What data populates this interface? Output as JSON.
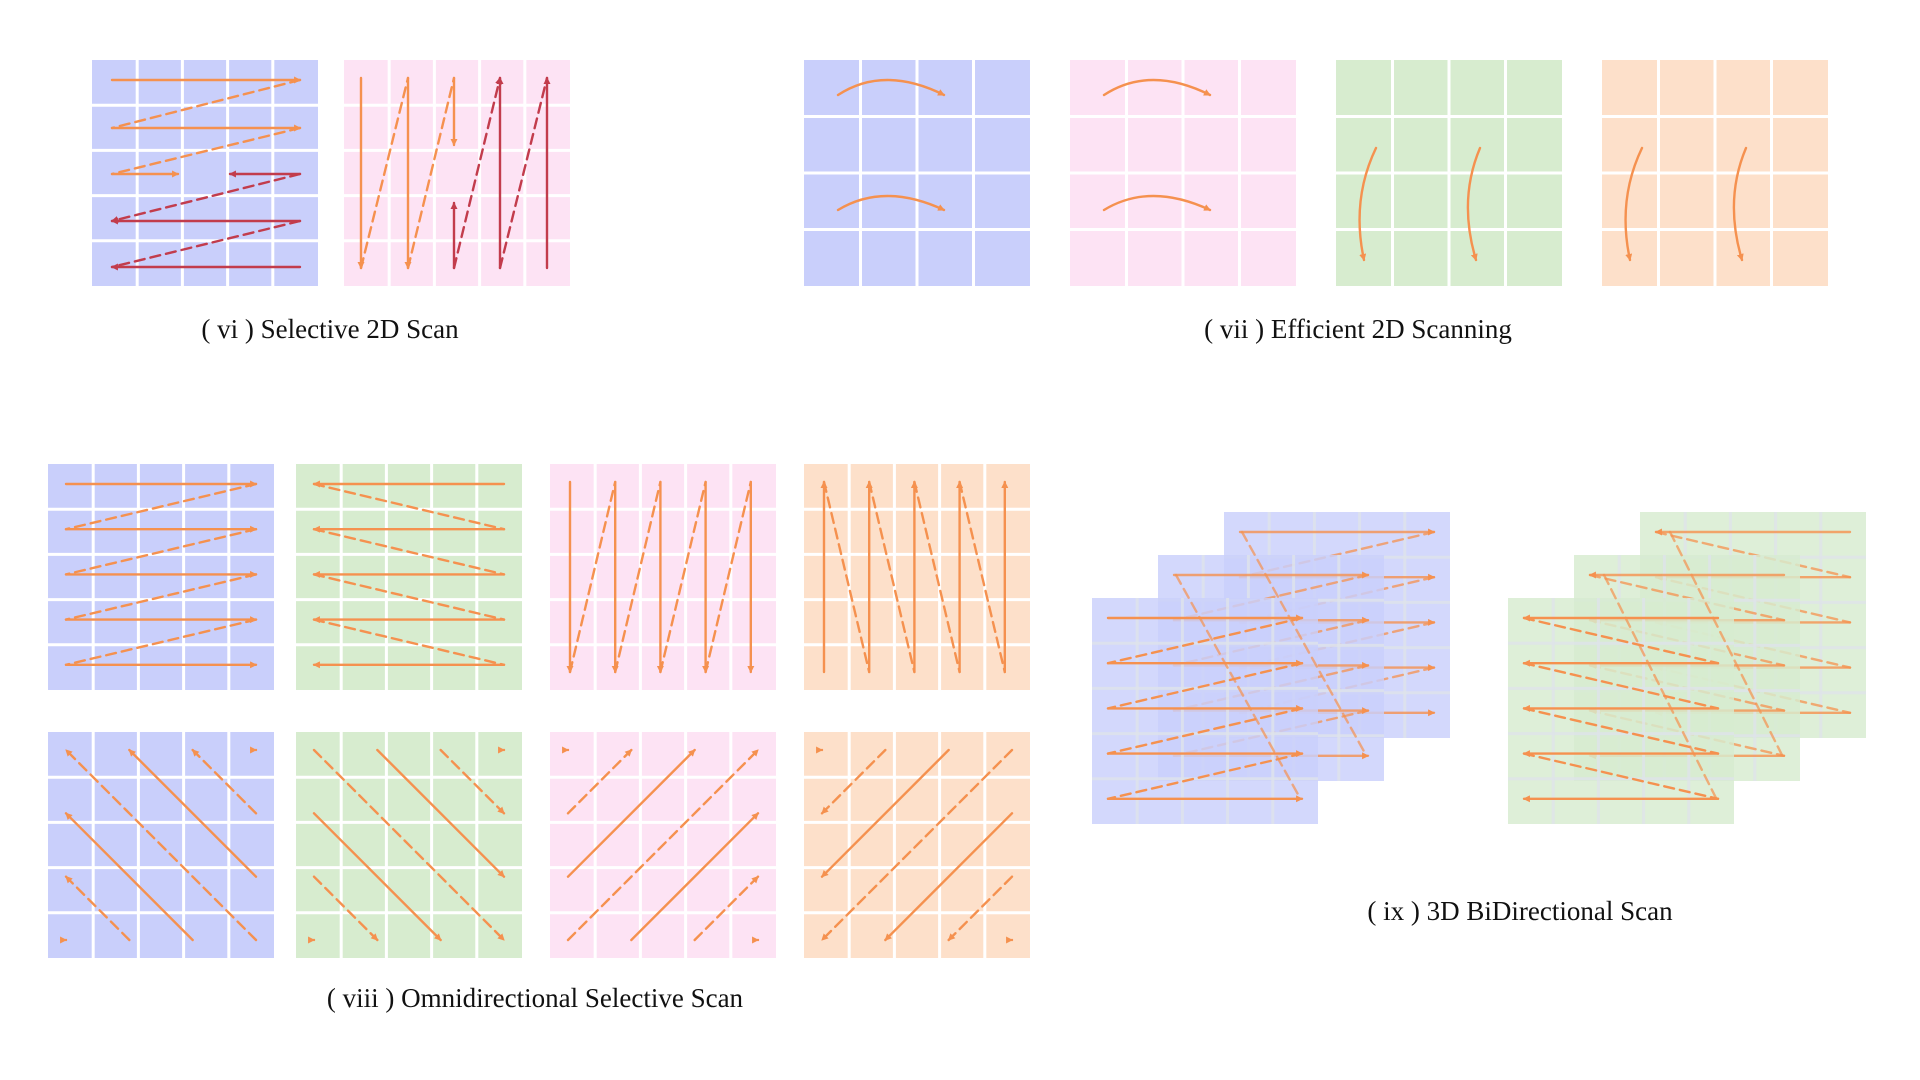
{
  "colors": {
    "blue": "#c9cffb",
    "pink": "#fde3f4",
    "green": "#d7eccf",
    "peach": "#fde0ca",
    "orange": "#f5914f",
    "red": "#c23c4c",
    "grid_line": "#ffffff"
  },
  "captions": {
    "vi": "( vi ) Selective 2D Scan",
    "vii": "( vii ) Efficient 2D Scanning",
    "viii": "( viii ) Omnidirectional Selective Scan",
    "ix": "( ix ) 3D BiDirectional Scan"
  },
  "grid": {
    "rows": 5,
    "cols": 5
  },
  "panels": {
    "vi_horizontal": {
      "fill": "blue",
      "pattern": "horizontal-snake-two-tone"
    },
    "vi_vertical": {
      "fill": "pink",
      "pattern": "vertical-snake-two-tone"
    },
    "vii": [
      {
        "fill": "blue",
        "pattern": "arc-right"
      },
      {
        "fill": "pink",
        "pattern": "arc-right"
      },
      {
        "fill": "green",
        "pattern": "arc-down"
      },
      {
        "fill": "peach",
        "pattern": "arc-down"
      }
    ],
    "viii": [
      {
        "fill": "blue",
        "pattern": "rows-left-to-right"
      },
      {
        "fill": "green",
        "pattern": "rows-right-to-left"
      },
      {
        "fill": "pink",
        "pattern": "columns-top-to-bottom"
      },
      {
        "fill": "peach",
        "pattern": "columns-bottom-to-top"
      },
      {
        "fill": "blue",
        "pattern": "diagonal-up-left"
      },
      {
        "fill": "green",
        "pattern": "diagonal-down-right"
      },
      {
        "fill": "pink",
        "pattern": "anti-diagonal-up-right"
      },
      {
        "fill": "peach",
        "pattern": "anti-diagonal-down-left"
      }
    ],
    "ix": [
      {
        "fill": "blue",
        "pattern": "stacked-forward"
      },
      {
        "fill": "green",
        "pattern": "stacked-backward"
      }
    ]
  }
}
